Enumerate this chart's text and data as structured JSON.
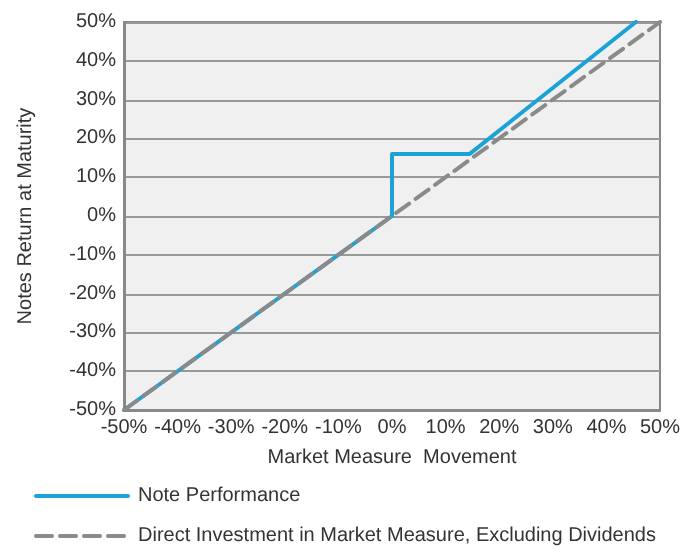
{
  "chart_data": {
    "type": "line",
    "xlabel": "Market Measure  Movement",
    "ylabel": "Notes Return at Maturity",
    "xlim": [
      -50,
      50
    ],
    "ylim": [
      -50,
      50
    ],
    "xticks": [
      {
        "value": -50,
        "label": "-50%"
      },
      {
        "value": -40,
        "label": "-40%"
      },
      {
        "value": -30,
        "label": "-30%"
      },
      {
        "value": -20,
        "label": "-20%"
      },
      {
        "value": -10,
        "label": "-10%"
      },
      {
        "value": 0,
        "label": "0%"
      },
      {
        "value": 10,
        "label": "10%"
      },
      {
        "value": 20,
        "label": "20%"
      },
      {
        "value": 30,
        "label": "30%"
      },
      {
        "value": 40,
        "label": "40%"
      },
      {
        "value": 50,
        "label": "50%"
      }
    ],
    "yticks": [
      {
        "value": -50,
        "label": "-50%"
      },
      {
        "value": -40,
        "label": "-40%"
      },
      {
        "value": -30,
        "label": "-30%"
      },
      {
        "value": -20,
        "label": "-20%"
      },
      {
        "value": -10,
        "label": "-10%"
      },
      {
        "value": 0,
        "label": "0%"
      },
      {
        "value": 10,
        "label": "10%"
      },
      {
        "value": 20,
        "label": "20%"
      },
      {
        "value": 30,
        "label": "30%"
      },
      {
        "value": 40,
        "label": "40%"
      },
      {
        "value": 50,
        "label": "50%"
      }
    ],
    "grid": "y",
    "legend": "bottom",
    "marker": "none",
    "series": [
      {
        "name": "Note Performance",
        "color": "#1ba3d8",
        "line_style": "solid",
        "x": [
          -50,
          0,
          0,
          14.5,
          45.5
        ],
        "values": [
          -50,
          0,
          16,
          16,
          50
        ]
      },
      {
        "name": "Direct Investment in Market Measure, Excluding Dividends",
        "color": "#8a8a8a",
        "line_style": "dashed",
        "x": [
          -50,
          50
        ],
        "values": [
          -50,
          50
        ]
      }
    ]
  }
}
